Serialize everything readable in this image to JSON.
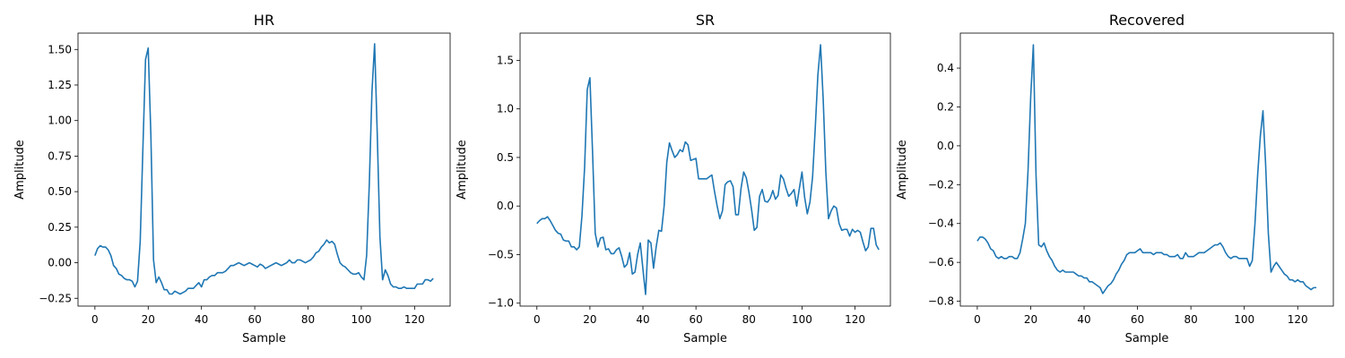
{
  "chart_data": [
    {
      "type": "line",
      "title": "HR",
      "xlabel": "Sample",
      "ylabel": "Amplitude",
      "xlim": [
        -6.35,
        133.35
      ],
      "ylim": [
        -0.305,
        1.615
      ],
      "xticks": [
        0,
        20,
        40,
        60,
        80,
        100,
        120
      ],
      "xtick_labels": [
        "0",
        "20",
        "40",
        "60",
        "80",
        "100",
        "120"
      ],
      "yticks": [
        -0.25,
        0.0,
        0.25,
        0.5,
        0.75,
        1.0,
        1.25,
        1.5
      ],
      "ytick_labels": [
        "−0.25",
        "0.00",
        "0.25",
        "0.50",
        "0.75",
        "1.00",
        "1.25",
        "1.50"
      ],
      "grid": false,
      "series": [
        {
          "color": "#1f77b4",
          "y": [
            0.05,
            0.1,
            0.12,
            0.11,
            0.11,
            0.09,
            0.05,
            -0.02,
            -0.04,
            -0.08,
            -0.09,
            -0.11,
            -0.12,
            -0.12,
            -0.13,
            -0.17,
            -0.13,
            0.15,
            0.8,
            1.43,
            1.51,
            0.9,
            0.02,
            -0.14,
            -0.1,
            -0.14,
            -0.19,
            -0.19,
            -0.22,
            -0.22,
            -0.2,
            -0.21,
            -0.22,
            -0.21,
            -0.2,
            -0.18,
            -0.18,
            -0.18,
            -0.16,
            -0.14,
            -0.17,
            -0.12,
            -0.12,
            -0.1,
            -0.09,
            -0.09,
            -0.07,
            -0.07,
            -0.07,
            -0.06,
            -0.04,
            -0.02,
            -0.02,
            -0.01,
            -0.0,
            -0.01,
            -0.02,
            -0.01,
            -0.0,
            -0.01,
            -0.02,
            -0.03,
            -0.01,
            -0.02,
            -0.04,
            -0.03,
            -0.02,
            -0.01,
            -0.0,
            -0.01,
            -0.02,
            -0.01,
            -0.0,
            0.02,
            0.0,
            -0.0,
            0.02,
            0.02,
            0.01,
            0.0,
            0.01,
            0.02,
            0.04,
            0.07,
            0.08,
            0.11,
            0.13,
            0.16,
            0.14,
            0.15,
            0.13,
            0.06,
            0.0,
            -0.02,
            -0.03,
            -0.05,
            -0.07,
            -0.08,
            -0.08,
            -0.07,
            -0.1,
            -0.12,
            0.05,
            0.55,
            1.2,
            1.54,
            0.9,
            0.18,
            -0.12,
            -0.05,
            -0.09,
            -0.15,
            -0.17,
            -0.17,
            -0.18,
            -0.18,
            -0.17,
            -0.18,
            -0.18,
            -0.18,
            -0.18,
            -0.15,
            -0.15,
            -0.15,
            -0.12,
            -0.12,
            -0.13,
            -0.11
          ]
        }
      ]
    },
    {
      "type": "line",
      "title": "SR",
      "xlabel": "Sample",
      "ylabel": "Amplitude",
      "xlim": [
        -6.35,
        133.35
      ],
      "ylim": [
        -1.03,
        1.78
      ],
      "xticks": [
        0,
        20,
        40,
        60,
        80,
        100,
        120
      ],
      "xtick_labels": [
        "0",
        "20",
        "40",
        "60",
        "80",
        "100",
        "120"
      ],
      "yticks": [
        -1.0,
        -0.5,
        0.0,
        0.5,
        1.0,
        1.5
      ],
      "ytick_labels": [
        "−1.0",
        "−0.5",
        "0.0",
        "0.5",
        "1.0",
        "1.5"
      ],
      "grid": false,
      "series": [
        {
          "color": "#1f77b4",
          "y": [
            -0.18,
            -0.15,
            -0.13,
            -0.13,
            -0.11,
            -0.15,
            -0.2,
            -0.25,
            -0.28,
            -0.29,
            -0.35,
            -0.36,
            -0.36,
            -0.42,
            -0.42,
            -0.45,
            -0.42,
            -0.1,
            0.4,
            1.2,
            1.32,
            0.55,
            -0.28,
            -0.42,
            -0.33,
            -0.32,
            -0.45,
            -0.44,
            -0.49,
            -0.49,
            -0.45,
            -0.43,
            -0.52,
            -0.63,
            -0.6,
            -0.48,
            -0.7,
            -0.68,
            -0.5,
            -0.38,
            -0.65,
            -0.91,
            -0.35,
            -0.38,
            -0.64,
            -0.42,
            -0.25,
            -0.26,
            0.0,
            0.45,
            0.65,
            0.57,
            0.5,
            0.53,
            0.58,
            0.56,
            0.66,
            0.63,
            0.47,
            0.48,
            0.49,
            0.28,
            0.28,
            0.28,
            0.28,
            0.3,
            0.32,
            0.15,
            0.0,
            -0.13,
            -0.05,
            0.22,
            0.25,
            0.26,
            0.2,
            -0.09,
            -0.09,
            0.18,
            0.35,
            0.29,
            0.14,
            -0.04,
            -0.25,
            -0.22,
            0.1,
            0.17,
            0.05,
            0.04,
            0.08,
            0.16,
            0.07,
            0.11,
            0.32,
            0.28,
            0.18,
            0.1,
            0.13,
            0.17,
            0.0,
            0.18,
            0.35,
            0.09,
            -0.08,
            0.04,
            0.3,
            0.8,
            1.35,
            1.66,
            1.1,
            0.35,
            -0.13,
            -0.05,
            0.0,
            -0.02,
            -0.18,
            -0.25,
            -0.24,
            -0.24,
            -0.31,
            -0.24,
            -0.27,
            -0.25,
            -0.27,
            -0.37,
            -0.46,
            -0.42,
            -0.23,
            -0.23,
            -0.4,
            -0.45
          ]
        }
      ]
    },
    {
      "type": "line",
      "title": "Recovered",
      "xlabel": "Sample",
      "ylabel": "Amplitude",
      "xlim": [
        -6.35,
        133.35
      ],
      "ylim": [
        -0.825,
        0.58
      ],
      "xticks": [
        0,
        20,
        40,
        60,
        80,
        100,
        120
      ],
      "xtick_labels": [
        "0",
        "20",
        "40",
        "60",
        "80",
        "100",
        "120"
      ],
      "yticks": [
        -0.8,
        -0.6,
        -0.4,
        -0.2,
        0.0,
        0.2,
        0.4
      ],
      "ytick_labels": [
        "−0.8",
        "−0.6",
        "−0.4",
        "−0.2",
        "0.0",
        "0.2",
        "0.4"
      ],
      "grid": false,
      "series": [
        {
          "color": "#1f77b4",
          "y": [
            -0.49,
            -0.47,
            -0.47,
            -0.48,
            -0.5,
            -0.53,
            -0.54,
            -0.57,
            -0.58,
            -0.57,
            -0.58,
            -0.58,
            -0.57,
            -0.57,
            -0.58,
            -0.58,
            -0.55,
            -0.48,
            -0.4,
            -0.13,
            0.25,
            0.52,
            -0.15,
            -0.51,
            -0.52,
            -0.5,
            -0.54,
            -0.57,
            -0.59,
            -0.62,
            -0.64,
            -0.65,
            -0.64,
            -0.65,
            -0.65,
            -0.65,
            -0.65,
            -0.66,
            -0.67,
            -0.67,
            -0.68,
            -0.68,
            -0.7,
            -0.7,
            -0.71,
            -0.72,
            -0.73,
            -0.76,
            -0.74,
            -0.72,
            -0.71,
            -0.69,
            -0.66,
            -0.64,
            -0.61,
            -0.59,
            -0.56,
            -0.55,
            -0.55,
            -0.55,
            -0.54,
            -0.53,
            -0.55,
            -0.55,
            -0.55,
            -0.55,
            -0.56,
            -0.55,
            -0.55,
            -0.55,
            -0.56,
            -0.56,
            -0.57,
            -0.57,
            -0.57,
            -0.56,
            -0.58,
            -0.58,
            -0.55,
            -0.57,
            -0.57,
            -0.57,
            -0.56,
            -0.55,
            -0.55,
            -0.55,
            -0.54,
            -0.53,
            -0.52,
            -0.51,
            -0.51,
            -0.5,
            -0.52,
            -0.55,
            -0.57,
            -0.58,
            -0.57,
            -0.57,
            -0.58,
            -0.58,
            -0.58,
            -0.58,
            -0.62,
            -0.59,
            -0.4,
            -0.15,
            0.05,
            0.18,
            -0.1,
            -0.45,
            -0.65,
            -0.62,
            -0.6,
            -0.62,
            -0.64,
            -0.66,
            -0.67,
            -0.69,
            -0.69,
            -0.7,
            -0.69,
            -0.7,
            -0.7,
            -0.72,
            -0.73,
            -0.74,
            -0.73,
            -0.73
          ]
        }
      ]
    }
  ]
}
